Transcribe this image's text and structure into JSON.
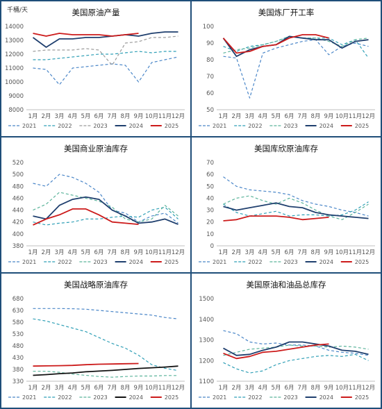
{
  "colors": {
    "2021": "#4a86c8",
    "2022": "#2f9fb6",
    "2023": "#5ab39a",
    "2023_gray": "#9a9a9a",
    "2024": "#1f3f6e",
    "2024_black": "#111111",
    "2025": "#cc1a1a"
  },
  "chart_data": [
    {
      "type": "line",
      "title": "美国原油产量",
      "unit": "千桶/天",
      "x_labels": [
        "1月",
        "2月",
        "3月",
        "4月",
        "5月",
        "6月",
        "7月",
        "8月",
        "9月",
        "10月",
        "11月",
        "12月"
      ],
      "y_ticks": [
        "14000",
        "13000",
        "12000",
        "11000",
        "10000",
        "9000",
        "8000"
      ],
      "ylim": [
        8000,
        14000
      ],
      "legend": [
        "2021",
        "2022",
        "2023",
        "2024",
        "2025"
      ],
      "series": [
        {
          "name": "2021",
          "color": "#4a86c8",
          "dash": true,
          "values": [
            11000,
            10900,
            9800,
            11000,
            11100,
            11200,
            11300,
            11200,
            10000,
            11400,
            11600,
            11800
          ]
        },
        {
          "name": "2022",
          "color": "#2f9fb6",
          "dash": true,
          "values": [
            11600,
            11600,
            11700,
            11800,
            11900,
            12000,
            12000,
            12100,
            12200,
            12100,
            12200,
            12200
          ]
        },
        {
          "name": "2023",
          "color": "#9a9a9a",
          "dash": true,
          "values": [
            12200,
            12300,
            12300,
            12300,
            12400,
            12300,
            11200,
            12800,
            12900,
            13200,
            13200,
            13300
          ]
        },
        {
          "name": "2024",
          "color": "#1f3f6e",
          "dash": false,
          "values": [
            13200,
            12500,
            13100,
            13100,
            13200,
            13200,
            13300,
            13400,
            13300,
            13500,
            13600,
            13600
          ]
        },
        {
          "name": "2025",
          "color": "#cc1a1a",
          "dash": false,
          "values": [
            13500,
            13300,
            13500,
            13400,
            13400,
            13400,
            13300,
            13400,
            13500
          ]
        }
      ]
    },
    {
      "type": "line",
      "title": "美国炼厂开工率",
      "x_labels": [
        "1月",
        "2月",
        "3月",
        "4月",
        "5月",
        "6月",
        "7月",
        "8月",
        "9月",
        "10月",
        "11月",
        "12月"
      ],
      "y_ticks": [
        "100",
        "90",
        "80",
        "70",
        "60",
        "50"
      ],
      "ylim": [
        50,
        100
      ],
      "legend": [
        "2021",
        "2022",
        "2023",
        "2024",
        "2025"
      ],
      "series": [
        {
          "name": "2021",
          "color": "#4a86c8",
          "dash": true,
          "values": [
            82,
            81,
            57,
            84,
            87,
            89,
            91,
            92,
            83,
            88,
            90,
            88
          ]
        },
        {
          "name": "2022",
          "color": "#2f9fb6",
          "dash": true,
          "values": [
            88,
            85,
            88,
            89,
            91,
            94,
            93,
            93,
            93,
            89,
            92,
            81
          ]
        },
        {
          "name": "2023",
          "color": "#5ab39a",
          "dash": true,
          "values": [
            84,
            86,
            87,
            89,
            91,
            94,
            93,
            93,
            91,
            88,
            92,
            93
          ]
        },
        {
          "name": "2024",
          "color": "#1f3f6e",
          "dash": false,
          "values": [
            93,
            82,
            86,
            88,
            89,
            94,
            93,
            92,
            92,
            87,
            91,
            92
          ]
        },
        {
          "name": "2025",
          "color": "#cc1a1a",
          "dash": false,
          "values": [
            93,
            84,
            85,
            88,
            89,
            93,
            95,
            95,
            93
          ]
        }
      ]
    },
    {
      "type": "line",
      "title": "美国商业原油库存",
      "x_labels": [
        "1月",
        "2月",
        "3月",
        "4月",
        "5月",
        "6月",
        "7月",
        "8月",
        "9月",
        "10月",
        "11月",
        "12月"
      ],
      "y_ticks": [
        "520",
        "500",
        "480",
        "460",
        "440",
        "420",
        "400",
        "380"
      ],
      "ylim": [
        380,
        520
      ],
      "legend": [
        "2021",
        "2022",
        "2023",
        "2024",
        "2025"
      ],
      "series": [
        {
          "name": "2021",
          "color": "#4a86c8",
          "dash": true,
          "values": [
            485,
            480,
            500,
            495,
            485,
            470,
            440,
            435,
            420,
            430,
            435,
            418
          ]
        },
        {
          "name": "2022",
          "color": "#2f9fb6",
          "dash": true,
          "values": [
            420,
            415,
            418,
            420,
            425,
            425,
            428,
            430,
            428,
            440,
            445,
            425
          ]
        },
        {
          "name": "2023",
          "color": "#5ab39a",
          "dash": true,
          "values": [
            440,
            450,
            470,
            465,
            460,
            455,
            445,
            425,
            420,
            425,
            448,
            430
          ]
        },
        {
          "name": "2024",
          "color": "#1f3f6e",
          "dash": false,
          "values": [
            430,
            425,
            448,
            458,
            462,
            458,
            440,
            430,
            418,
            420,
            425,
            416
          ]
        },
        {
          "name": "2025",
          "color": "#cc1a1a",
          "dash": false,
          "values": [
            415,
            425,
            432,
            442,
            442,
            432,
            420,
            418,
            416
          ]
        }
      ]
    },
    {
      "type": "line",
      "title": "美国库欣原油库存",
      "x_labels": [
        "1月",
        "2月",
        "3月",
        "4月",
        "5月",
        "6月",
        "7月",
        "8月",
        "9月",
        "10月",
        "11月",
        "12月"
      ],
      "y_ticks": [
        "70",
        "60",
        "50",
        "40",
        "30",
        "20",
        "10",
        "0"
      ],
      "ylim": [
        0,
        70
      ],
      "legend": [
        "2021",
        "2022",
        "2023",
        "2024",
        "2025"
      ],
      "series": [
        {
          "name": "2021",
          "color": "#4a86c8",
          "dash": true,
          "values": [
            58,
            50,
            47,
            46,
            45,
            43,
            38,
            35,
            33,
            30,
            28,
            25
          ]
        },
        {
          "name": "2022",
          "color": "#2f9fb6",
          "dash": true,
          "values": [
            35,
            28,
            25,
            27,
            29,
            25,
            26,
            26,
            25,
            26,
            30,
            37
          ]
        },
        {
          "name": "2023",
          "color": "#5ab39a",
          "dash": true,
          "values": [
            35,
            40,
            42,
            38,
            35,
            40,
            36,
            30,
            25,
            22,
            28,
            35
          ]
        },
        {
          "name": "2024",
          "color": "#1f3f6e",
          "dash": false,
          "values": [
            33,
            30,
            32,
            34,
            36,
            33,
            32,
            28,
            26,
            25,
            24,
            23
          ]
        },
        {
          "name": "2025",
          "color": "#cc1a1a",
          "dash": false,
          "values": [
            21,
            22,
            25,
            25,
            25,
            24,
            22,
            23,
            24
          ]
        }
      ]
    },
    {
      "type": "line",
      "title": "美国战略原油库存",
      "x_labels": [
        "1月",
        "2月",
        "3月",
        "4月",
        "5月",
        "6月",
        "7月",
        "8月",
        "9月",
        "10月",
        "11月",
        "12月"
      ],
      "y_ticks": [
        "680",
        "630",
        "580",
        "530",
        "480",
        "430",
        "380",
        "330"
      ],
      "ylim": [
        330,
        680
      ],
      "legend": [
        "2021",
        "2022",
        "2023",
        "2024",
        "2025"
      ],
      "series": [
        {
          "name": "2021",
          "color": "#4a86c8",
          "dash": true,
          "values": [
            638,
            638,
            638,
            637,
            635,
            630,
            625,
            620,
            615,
            610,
            600,
            594
          ]
        },
        {
          "name": "2022",
          "color": "#2f9fb6",
          "dash": true,
          "values": [
            594,
            585,
            570,
            555,
            540,
            515,
            490,
            470,
            440,
            400,
            385,
            375
          ]
        },
        {
          "name": "2023",
          "color": "#5ab39a",
          "dash": true,
          "values": [
            372,
            372,
            368,
            360,
            355,
            350,
            347,
            350,
            352,
            352,
            354,
            354
          ]
        },
        {
          "name": "2024",
          "color": "#111111",
          "dash": false,
          "values": [
            355,
            358,
            362,
            365,
            370,
            373,
            376,
            380,
            384,
            387,
            390,
            394
          ]
        },
        {
          "name": "2025",
          "color": "#cc1a1a",
          "dash": false,
          "values": [
            394,
            395,
            396,
            397,
            400,
            402,
            403,
            404,
            405
          ]
        }
      ]
    },
    {
      "type": "line",
      "title": "美国原油和油品总库存",
      "x_labels": [
        "1月",
        "2月",
        "3月",
        "4月",
        "5月",
        "6月",
        "7月",
        "8月",
        "9月",
        "10月",
        "11月",
        "12月"
      ],
      "y_ticks": [
        "1500",
        "1400",
        "1300",
        "1200",
        "1100"
      ],
      "ylim": [
        1100,
        1500
      ],
      "legend": [
        "2021",
        "2022",
        "2023",
        "2024",
        "2025"
      ],
      "series": [
        {
          "name": "2021",
          "color": "#4a86c8",
          "dash": true,
          "values": [
            1345,
            1330,
            1290,
            1280,
            1285,
            1275,
            1275,
            1270,
            1250,
            1240,
            1235,
            1225
          ]
        },
        {
          "name": "2022",
          "color": "#2f9fb6",
          "dash": true,
          "values": [
            1190,
            1160,
            1140,
            1150,
            1180,
            1200,
            1210,
            1220,
            1225,
            1220,
            1230,
            1200
          ]
        },
        {
          "name": "2023",
          "color": "#5ab39a",
          "dash": true,
          "values": [
            1225,
            1240,
            1255,
            1260,
            1265,
            1275,
            1270,
            1270,
            1265,
            1270,
            1265,
            1255
          ]
        },
        {
          "name": "2024",
          "color": "#1f3f6e",
          "dash": false,
          "values": [
            1260,
            1225,
            1230,
            1250,
            1265,
            1290,
            1290,
            1280,
            1270,
            1250,
            1245,
            1230
          ]
        },
        {
          "name": "2025",
          "color": "#cc1a1a",
          "dash": false,
          "values": [
            1235,
            1210,
            1220,
            1240,
            1245,
            1255,
            1265,
            1275,
            1280
          ]
        }
      ]
    }
  ]
}
